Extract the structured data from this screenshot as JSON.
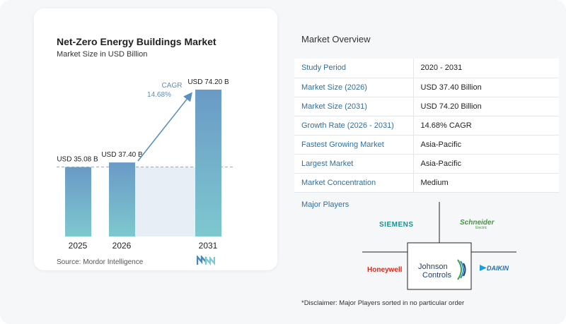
{
  "chart": {
    "title": "Net-Zero Energy Buildings Market",
    "subtitle": "Market Size in USD Billion",
    "cagr_label": "CAGR",
    "cagr_value": "14.68%",
    "source": "Source:  Mordor Intelligence"
  },
  "chart_data": {
    "type": "bar",
    "title": "Net-Zero Energy Buildings Market",
    "subtitle": "Market Size in USD Billion",
    "categories": [
      "2025",
      "2026",
      "2031"
    ],
    "values": [
      35.08,
      37.4,
      74.2
    ],
    "data_labels": [
      "USD 35.08 B",
      "USD 37.40 B",
      "USD 74.20 B"
    ],
    "annotation": {
      "label": "CAGR",
      "value": "14.68%"
    },
    "ylim": [
      0,
      80
    ],
    "grid": false,
    "colors": {
      "bar_top": "#6a9ac6",
      "bar_bottom": "#7ec8cf",
      "shade": "#e8eef6",
      "arrow": "#5a8fbe"
    }
  },
  "overview": {
    "title": "Market Overview",
    "rows": [
      {
        "key": "Study Period",
        "value": "2020 - 2031"
      },
      {
        "key": "Market Size (2026)",
        "value": "USD 37.40 Billion"
      },
      {
        "key": "Market Size (2031)",
        "value": "USD 74.20 Billion"
      },
      {
        "key": "Growth Rate (2026 - 2031)",
        "value": "14.68% CAGR"
      },
      {
        "key": "Fastest Growing Market",
        "value": "Asia-Pacific"
      },
      {
        "key": "Largest Market",
        "value": "Asia-Pacific"
      },
      {
        "key": "Market Concentration",
        "value": "Medium"
      }
    ]
  },
  "players": {
    "title": "Major Players",
    "names": [
      "SIEMENS",
      "Schneider",
      "Electric",
      "Honeywell",
      "Johnson",
      "Controls",
      "DAIKIN"
    ]
  },
  "disclaimer": "*Disclaimer: Major Players sorted in no particular order"
}
